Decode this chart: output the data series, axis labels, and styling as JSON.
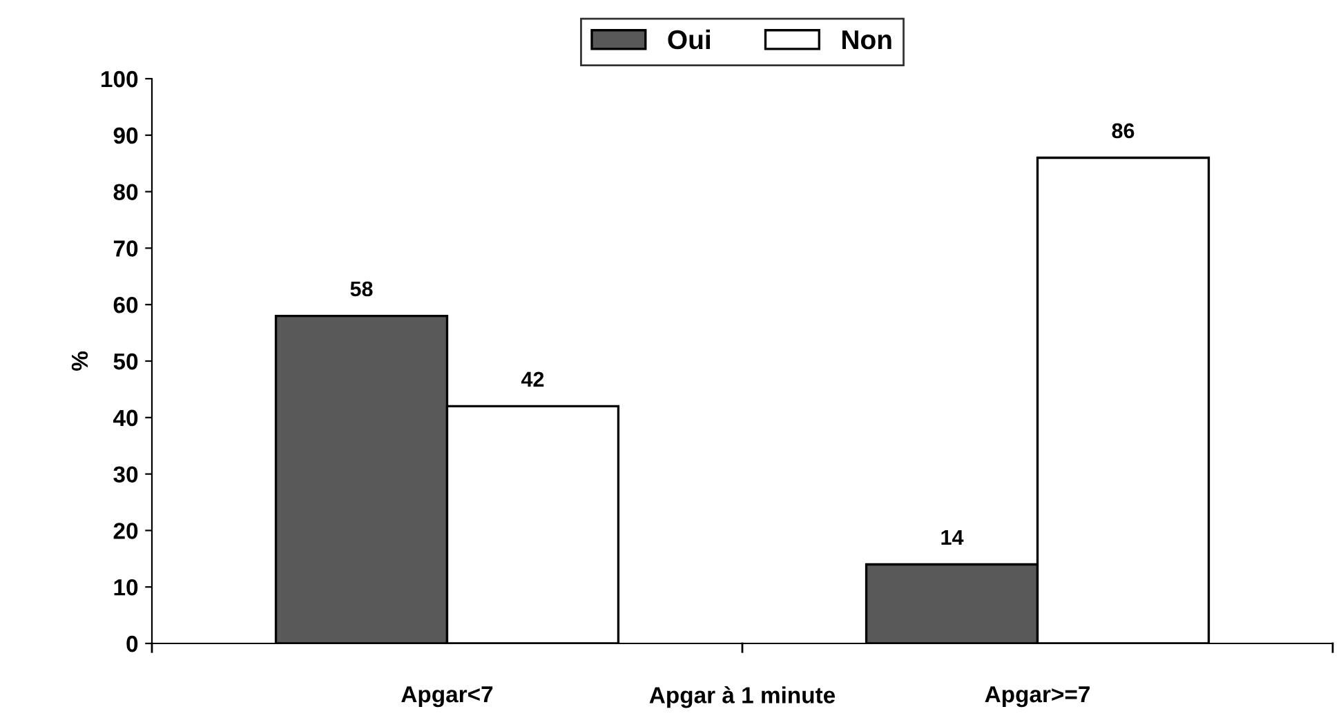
{
  "chart_data": {
    "type": "bar",
    "categories": [
      "Apgar<7",
      "Apgar>=7"
    ],
    "xlabel": "Apgar à 1 minute",
    "ylabel": "%",
    "series": [
      {
        "name": "Oui",
        "color": "#595959",
        "values": [
          58,
          14
        ]
      },
      {
        "name": "Non",
        "color": "#ffffff",
        "values": [
          42,
          86
        ]
      }
    ],
    "ylim": [
      0,
      100
    ],
    "yticks": [
      0,
      10,
      20,
      30,
      40,
      50,
      60,
      70,
      80,
      90,
      100
    ],
    "grid": false,
    "legend": "top",
    "data_labels": true
  }
}
